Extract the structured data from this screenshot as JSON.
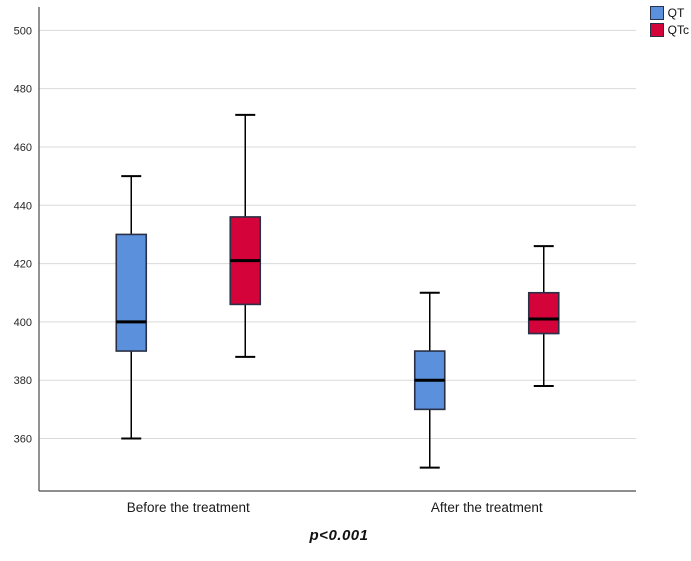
{
  "chart_data": {
    "type": "boxplot",
    "title": "",
    "xlabel": "",
    "ylabel": "",
    "categories": [
      "Before the treatment",
      "After the treatment"
    ],
    "series": [
      {
        "name": "QT",
        "color": "#5B90DC",
        "boxes": [
          {
            "category": "Before the treatment",
            "whisker_low": 360,
            "q1": 390,
            "median": 400,
            "q3": 430,
            "whisker_high": 450
          },
          {
            "category": "After the treatment",
            "whisker_low": 350,
            "q1": 370,
            "median": 380,
            "q3": 390,
            "whisker_high": 410
          }
        ]
      },
      {
        "name": "QTc",
        "color": "#D40339",
        "boxes": [
          {
            "category": "Before the treatment",
            "whisker_low": 388,
            "q1": 406,
            "median": 421,
            "q3": 436,
            "whisker_high": 471
          },
          {
            "category": "After the treatment",
            "whisker_low": 378,
            "q1": 396,
            "median": 401,
            "q3": 410,
            "whisker_high": 426
          }
        ]
      }
    ],
    "yticks": [
      360,
      380,
      400,
      420,
      440,
      460,
      480,
      500
    ],
    "ylim": [
      342,
      508
    ],
    "grid": true,
    "legend_position": "top-right",
    "annotation": "p<0.001",
    "colors": {
      "background": "#FFFFFF",
      "grid": "#D9D9D9",
      "axis": "#4A4A4A",
      "whisker": "#000000",
      "median": "#000000",
      "box_border": "#2A3147",
      "tick_label": "#262626",
      "category_label": "#1A1A1A"
    }
  }
}
